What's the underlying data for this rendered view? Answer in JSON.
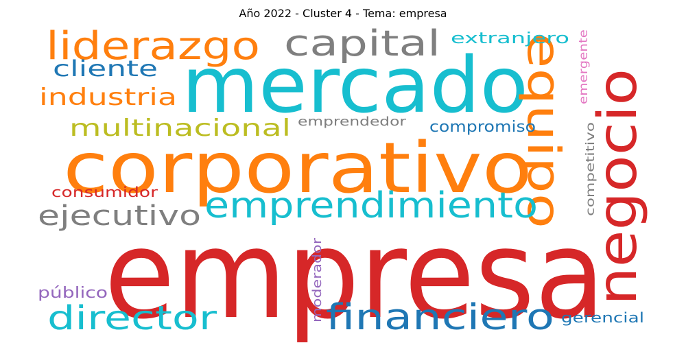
{
  "title": "Año 2022 - Cluster 4 - Tema: empresa",
  "words": [
    {
      "text": "empresa",
      "color": "#d62728"
    },
    {
      "text": "mercado",
      "color": "#17becf"
    },
    {
      "text": "corporativo",
      "color": "#ff7f0e"
    },
    {
      "text": "negocio",
      "color": "#d62728"
    },
    {
      "text": "equipo",
      "color": "#ff7f0e"
    },
    {
      "text": "emprendimiento",
      "color": "#17becf"
    },
    {
      "text": "financiero",
      "color": "#1f77b4"
    },
    {
      "text": "liderazgo",
      "color": "#ff7f0e"
    },
    {
      "text": "capital",
      "color": "#7f7f7f"
    },
    {
      "text": "director",
      "color": "#17becf"
    },
    {
      "text": "ejecutivo",
      "color": "#7f7f7f"
    },
    {
      "text": "multinacional",
      "color": "#bcbd22"
    },
    {
      "text": "industria",
      "color": "#ff7f0e"
    },
    {
      "text": "cliente",
      "color": "#1f77b4"
    },
    {
      "text": "extranjero",
      "color": "#17becf"
    },
    {
      "text": "compromiso",
      "color": "#1f77b4"
    },
    {
      "text": "emprendedor",
      "color": "#7f7f7f"
    },
    {
      "text": "consumidor",
      "color": "#d62728"
    },
    {
      "text": "emergente",
      "color": "#e377c2"
    },
    {
      "text": "competitivo",
      "color": "#7f7f7f"
    },
    {
      "text": "moderador",
      "color": "#9467bd"
    },
    {
      "text": "público",
      "color": "#9467bd"
    },
    {
      "text": "gerencial",
      "color": "#1f77b4"
    }
  ]
}
